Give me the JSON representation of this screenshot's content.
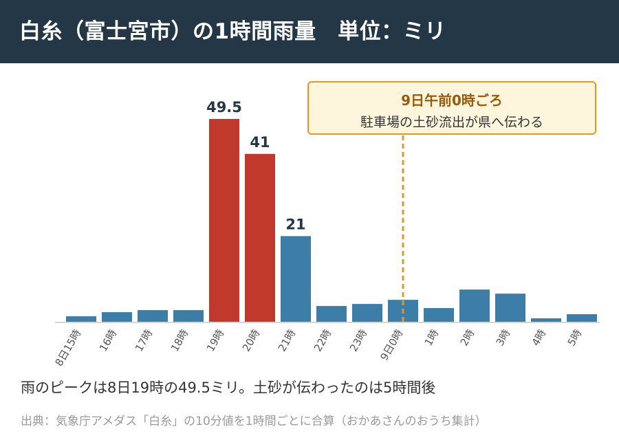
{
  "header": {
    "title": "白糸（富士宮市）の1時間雨量　単位：ミリ"
  },
  "colors": {
    "header_bg": "#243746",
    "bar_normal": "#3d7ea8",
    "bar_peak": "#c0392b",
    "annotation": "#e39a1c",
    "label_text": "#243746"
  },
  "chart_data": {
    "type": "bar",
    "title": "白糸（富士宮市）の1時間雨量　単位：ミリ",
    "unit": "ミリ",
    "categories": [
      "8日15時",
      "16時",
      "17時",
      "18時",
      "19時",
      "20時",
      "21時",
      "22時",
      "23時",
      "9日0時",
      "1時",
      "2時",
      "3時",
      "4時",
      "5時"
    ],
    "values": [
      1.5,
      2.5,
      3,
      3,
      49.5,
      41,
      21,
      4,
      4.5,
      5.5,
      3.5,
      8,
      7,
      1,
      2
    ],
    "highlight": [
      false,
      false,
      false,
      false,
      true,
      true,
      false,
      false,
      false,
      false,
      false,
      false,
      false,
      false,
      false
    ],
    "data_labels": [
      "",
      "",
      "",
      "",
      "49.5",
      "41",
      "21",
      "",
      "",
      "",
      "",
      "",
      "",
      "",
      ""
    ],
    "ylim": [
      0,
      55
    ],
    "grid": false,
    "annotation": {
      "category": "9日0時",
      "title": "9日午前0時ごろ",
      "text": "駐車場の土砂流出が県へ伝わる"
    }
  },
  "summary": "雨のピークは8日19時の49.5ミリ。土砂が伝わったのは5時間後",
  "source": "出典：気象庁アメダス「白糸」の10分値を1時間ごとに合算（おかあさんのおうち集計）"
}
